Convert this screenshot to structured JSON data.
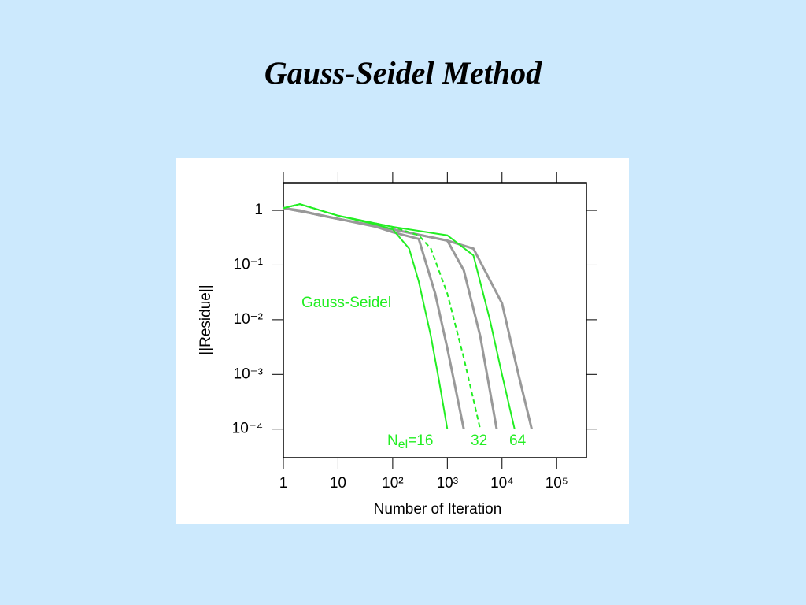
{
  "title": "Gauss-Seidel Method",
  "chart_data": {
    "type": "line",
    "y_label": "||Residue||",
    "x_label": "Number of Iteration",
    "xlog": true,
    "ylog": true,
    "xlim": [
      1,
      350000
    ],
    "ylim": [
      3e-05,
      3.2
    ],
    "xticks": [
      1,
      10,
      {
        "value": 100,
        "label": "10²"
      },
      {
        "value": 1000,
        "label": "10³"
      },
      {
        "value": 10000,
        "label": "10⁴"
      },
      {
        "value": 100000,
        "label": "10⁵"
      }
    ],
    "yticks": [
      1,
      {
        "value": 0.1,
        "label": "10⁻¹"
      },
      {
        "value": 0.01,
        "label": "10⁻²"
      },
      {
        "value": 0.001,
        "label": "10⁻³"
      },
      {
        "value": 0.0001,
        "label": "10⁻⁴"
      }
    ],
    "annotations": {
      "method": "Gauss-Seidel",
      "n_base": "N",
      "n_sub": "el",
      "n16": "=16",
      "n32": "32",
      "n64": "64"
    },
    "series": [
      {
        "color": "#999999",
        "x": [
          1,
          2,
          5,
          10,
          50,
          100,
          300,
          600,
          1000,
          2000
        ],
        "values": [
          1.1,
          1.0,
          0.8,
          0.7,
          0.5,
          0.4,
          0.3,
          0.03,
          0.003,
          0.0001
        ]
      },
      {
        "color": "#999999",
        "x": [
          1,
          3,
          10,
          100,
          1000,
          2000,
          4000,
          8000
        ],
        "values": [
          1.1,
          0.9,
          0.7,
          0.45,
          0.28,
          0.08,
          0.005,
          0.0001
        ]
      },
      {
        "color": "#999999",
        "x": [
          1,
          3,
          10,
          100,
          1000,
          3000,
          10000,
          20000,
          35000
        ],
        "values": [
          1.1,
          0.9,
          0.7,
          0.45,
          0.28,
          0.2,
          0.02,
          0.001,
          0.0001
        ]
      },
      {
        "color": "#22ee22",
        "x": [
          1,
          2,
          10,
          50,
          100,
          200,
          300,
          500,
          700,
          1000
        ],
        "values": [
          1.1,
          1.3,
          0.8,
          0.55,
          0.45,
          0.2,
          0.05,
          0.005,
          0.0008,
          0.0001
        ]
      },
      {
        "color": "#22ee22",
        "dashed": true,
        "x": [
          1,
          2,
          10,
          100,
          300,
          500,
          1000,
          2000,
          4000
        ],
        "values": [
          1.1,
          1.3,
          0.8,
          0.5,
          0.35,
          0.2,
          0.03,
          0.002,
          0.0001
        ]
      },
      {
        "color": "#22ee22",
        "x": [
          1,
          2,
          10,
          100,
          1000,
          3000,
          6000,
          10000,
          17000
        ],
        "values": [
          1.1,
          1.3,
          0.8,
          0.5,
          0.35,
          0.15,
          0.01,
          0.001,
          0.0001
        ]
      }
    ]
  }
}
